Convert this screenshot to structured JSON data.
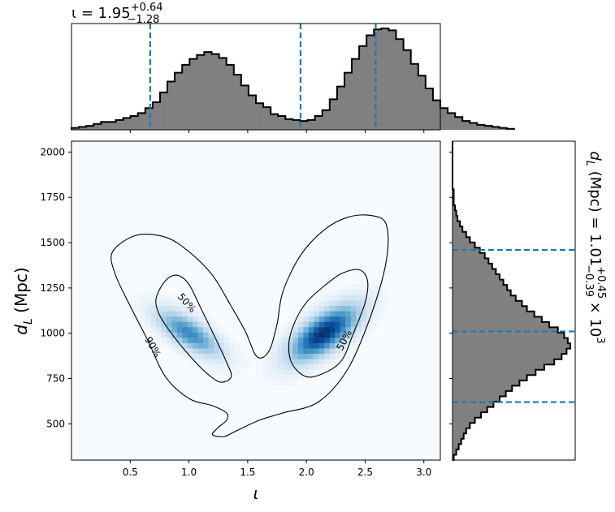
{
  "chart_data": [
    {
      "type": "heatmap",
      "panel": "joint",
      "xlabel": "ι",
      "ylabel_main": "d",
      "ylabel_sub": "L",
      "ylabel_unit": " (Mpc)",
      "xlim": [
        0.0,
        3.14
      ],
      "ylim": [
        300,
        2060
      ],
      "xticks": [
        "0.5",
        "1.0",
        "1.5",
        "2.0",
        "2.5",
        "3.0"
      ],
      "yticks": [
        "500",
        "750",
        "1000",
        "1250",
        "1500",
        "1750",
        "2000"
      ],
      "colormap": "Blues",
      "contours": [
        {
          "level": "50%",
          "color": "#000000"
        },
        {
          "level": "90%",
          "color": "#000000"
        }
      ],
      "modes": [
        {
          "x": 1.0,
          "y": 1000
        },
        {
          "x": 2.15,
          "y": 1000
        }
      ]
    },
    {
      "type": "histogram",
      "panel": "top-marginal",
      "variable": "ι",
      "title_main": "ι = 1.95",
      "title_sup": "+0.64",
      "title_sub": "−1.28",
      "median": 1.95,
      "credible_interval": [
        0.67,
        2.59
      ],
      "quantile_line_color": "#1f77b4",
      "fill_color": "#808080",
      "bin_edges_start": 0.0,
      "bin_width": 0.0628,
      "counts": [
        2,
        3,
        4,
        6,
        8,
        8,
        10,
        12,
        14,
        17,
        22,
        28,
        38,
        49,
        58,
        66,
        72,
        76,
        79,
        77,
        73,
        66,
        56,
        45,
        35,
        27,
        23,
        16,
        14,
        11,
        10,
        9,
        10,
        14,
        20,
        31,
        44,
        58,
        72,
        85,
        96,
        102,
        103,
        101,
        92,
        81,
        67,
        55,
        42,
        30,
        22,
        17,
        13,
        9,
        7,
        5,
        4,
        3,
        2,
        1
      ]
    },
    {
      "type": "histogram",
      "panel": "right-marginal",
      "orientation": "horizontal",
      "variable": "d_L",
      "title_main": "d",
      "title_sub_var": "L",
      "title_mid": " (Mpc) = 1.01",
      "title_sup": "+0.45",
      "title_sub": "−0.39",
      "title_tail": " × 10",
      "title_exp": "3",
      "median": 1010,
      "credible_interval": [
        620,
        1460
      ],
      "quantile_line_color": "#1f77b4",
      "fill_color": "#808080",
      "bin_edges_start": 300,
      "bin_width": 29.3,
      "counts": [
        1,
        3,
        5,
        7,
        9,
        11,
        14,
        18,
        23,
        28,
        33,
        38,
        43,
        48,
        54,
        60,
        67,
        74,
        82,
        88,
        92,
        95,
        93,
        90,
        85,
        78,
        72,
        66,
        60,
        56,
        51,
        47,
        44,
        41,
        38,
        35,
        32,
        29,
        26,
        22,
        18,
        14,
        11,
        8,
        6,
        4,
        3,
        2,
        1,
        1,
        1,
        0,
        0,
        0,
        0,
        0,
        0,
        0,
        0,
        0
      ]
    }
  ]
}
